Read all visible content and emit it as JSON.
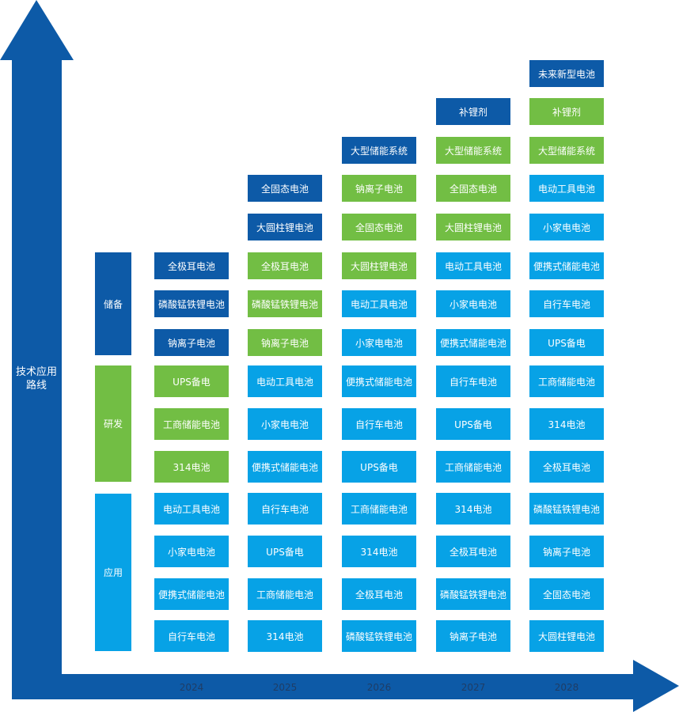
{
  "y_axis_label": "技术应用\n路线",
  "colors": {
    "axis": "#0d5aa7",
    "储备": "#0d5aa7",
    "研发": "#72be44",
    "应用": "#07a2e6"
  },
  "categories": [
    {
      "key": "reserve",
      "label": "储备",
      "color": "#0d5aa7"
    },
    {
      "key": "rnd",
      "label": "研发",
      "color": "#72be44"
    },
    {
      "key": "applied",
      "label": "应用",
      "color": "#07a2e6"
    }
  ],
  "years": [
    {
      "year": "2024",
      "items": [
        {
          "label": "自行车电池",
          "stage": "应用"
        },
        {
          "label": "便携式储能电池",
          "stage": "应用"
        },
        {
          "label": "小家电电池",
          "stage": "应用"
        },
        {
          "label": "电动工具电池",
          "stage": "应用"
        },
        {
          "label": "314电池",
          "stage": "研发"
        },
        {
          "label": "工商储能电池",
          "stage": "研发"
        },
        {
          "label": "UPS备电",
          "stage": "研发"
        },
        {
          "label": "钠离子电池",
          "stage": "储备"
        },
        {
          "label": "磷酸锰铁锂电池",
          "stage": "储备"
        },
        {
          "label": "全极耳电池",
          "stage": "储备"
        }
      ]
    },
    {
      "year": "2025",
      "items": [
        {
          "label": "314电池",
          "stage": "应用"
        },
        {
          "label": "工商储能电池",
          "stage": "应用"
        },
        {
          "label": "UPS备电",
          "stage": "应用"
        },
        {
          "label": "自行车电池",
          "stage": "应用"
        },
        {
          "label": "便携式储能电池",
          "stage": "应用"
        },
        {
          "label": "小家电电池",
          "stage": "应用"
        },
        {
          "label": "电动工具电池",
          "stage": "应用"
        },
        {
          "label": "钠离子电池",
          "stage": "研发"
        },
        {
          "label": "磷酸锰铁锂电池",
          "stage": "研发"
        },
        {
          "label": "全极耳电池",
          "stage": "研发"
        },
        {
          "label": "大圆柱锂电池",
          "stage": "储备"
        },
        {
          "label": "全固态电池",
          "stage": "储备"
        }
      ]
    },
    {
      "year": "2026",
      "items": [
        {
          "label": "磷酸锰铁锂电池",
          "stage": "应用"
        },
        {
          "label": "全极耳电池",
          "stage": "应用"
        },
        {
          "label": "314电池",
          "stage": "应用"
        },
        {
          "label": "工商储能电池",
          "stage": "应用"
        },
        {
          "label": "UPS备电",
          "stage": "应用"
        },
        {
          "label": "自行车电池",
          "stage": "应用"
        },
        {
          "label": "便携式储能电池",
          "stage": "应用"
        },
        {
          "label": "小家电电池",
          "stage": "应用"
        },
        {
          "label": "电动工具电池",
          "stage": "应用"
        },
        {
          "label": "大圆柱锂电池",
          "stage": "研发"
        },
        {
          "label": "全固态电池",
          "stage": "研发"
        },
        {
          "label": "钠离子电池",
          "stage": "研发"
        },
        {
          "label": "大型储能系统",
          "stage": "储备"
        }
      ]
    },
    {
      "year": "2027",
      "items": [
        {
          "label": "钠离子电池",
          "stage": "应用"
        },
        {
          "label": "磷酸锰铁锂电池",
          "stage": "应用"
        },
        {
          "label": "全极耳电池",
          "stage": "应用"
        },
        {
          "label": "314电池",
          "stage": "应用"
        },
        {
          "label": "工商储能电池",
          "stage": "应用"
        },
        {
          "label": "UPS备电",
          "stage": "应用"
        },
        {
          "label": "自行车电池",
          "stage": "应用"
        },
        {
          "label": "便携式储能电池",
          "stage": "应用"
        },
        {
          "label": "小家电电池",
          "stage": "应用"
        },
        {
          "label": "电动工具电池",
          "stage": "应用"
        },
        {
          "label": "大圆柱锂电池",
          "stage": "研发"
        },
        {
          "label": "全固态电池",
          "stage": "研发"
        },
        {
          "label": "大型储能系统",
          "stage": "研发"
        },
        {
          "label": "补锂剂",
          "stage": "储备"
        }
      ]
    },
    {
      "year": "2028",
      "items": [
        {
          "label": "大圆柱锂电池",
          "stage": "应用"
        },
        {
          "label": "全固态电池",
          "stage": "应用"
        },
        {
          "label": "钠离子电池",
          "stage": "应用"
        },
        {
          "label": "磷酸锰铁锂电池",
          "stage": "应用"
        },
        {
          "label": "全极耳电池",
          "stage": "应用"
        },
        {
          "label": "314电池",
          "stage": "应用"
        },
        {
          "label": "工商储能电池",
          "stage": "应用"
        },
        {
          "label": "UPS备电",
          "stage": "应用"
        },
        {
          "label": "自行车电池",
          "stage": "应用"
        },
        {
          "label": "便携式储能电池",
          "stage": "应用"
        },
        {
          "label": "小家电电池",
          "stage": "应用"
        },
        {
          "label": "电动工具电池",
          "stage": "应用"
        },
        {
          "label": "大型储能系统",
          "stage": "研发"
        },
        {
          "label": "补锂剂",
          "stage": "研发"
        },
        {
          "label": "未来新型电池",
          "stage": "储备"
        }
      ]
    }
  ]
}
